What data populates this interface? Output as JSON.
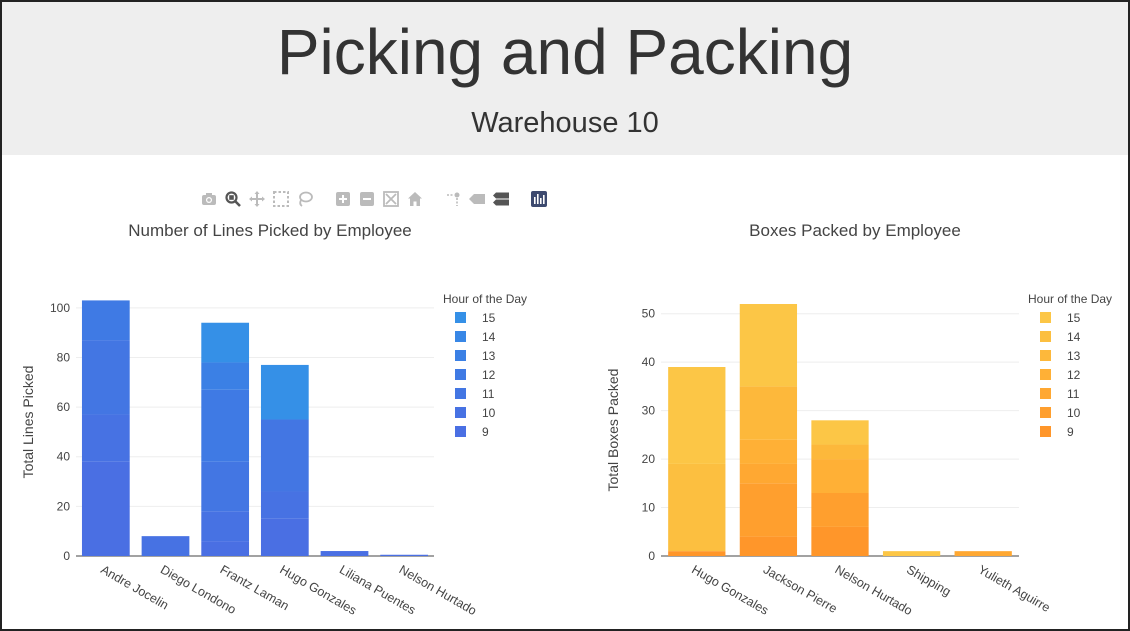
{
  "header": {
    "title": "Picking and Packing",
    "subtitle": "Warehouse 10"
  },
  "modebar": {
    "icons": [
      "camera-icon",
      "zoom-icon",
      "pan-icon",
      "box-select-icon",
      "lasso-select-icon",
      "zoom-in-icon",
      "zoom-out-icon",
      "autoscale-icon",
      "reset-axes-icon",
      "spike-lines-icon",
      "hover-closest-icon",
      "hover-compare-icon",
      "plotly-logo-icon"
    ]
  },
  "colors": {
    "blue": [
      "#4a6fe3",
      "#4772e3",
      "#4376e3",
      "#3f7ae4",
      "#3b80e5",
      "#3887e6",
      "#3590e7"
    ],
    "orange": [
      "#ff962a",
      "#ff9f2e",
      "#ffa832",
      "#ffb036",
      "#fdb83b",
      "#fcbf40",
      "#fcc646"
    ],
    "grid": "#eeeeee",
    "axis": "#444444"
  },
  "chart_data": [
    {
      "type": "bar",
      "stacked": true,
      "title": "Number of Lines Picked by Employee",
      "xlabel": "",
      "ylabel": "Total Lines Picked",
      "ylim": [
        0,
        108
      ],
      "yticks": [
        0,
        20,
        40,
        60,
        80,
        100
      ],
      "legend_title": "Hour of the Day",
      "legend_order": [
        "15",
        "14",
        "13",
        "12",
        "11",
        "10",
        "9"
      ],
      "categories": [
        "Andre Jocelin",
        "Diego Londono",
        "Frantz Laman",
        "Hugo Gonzales",
        "Liliana Puentes",
        "Nelson Hurtado"
      ],
      "series": [
        {
          "name": "9",
          "values": [
            38,
            0,
            6,
            15,
            2,
            0.5
          ]
        },
        {
          "name": "10",
          "values": [
            19,
            8,
            12,
            11,
            0,
            0
          ]
        },
        {
          "name": "11",
          "values": [
            30,
            0,
            20,
            29,
            0,
            0
          ]
        },
        {
          "name": "12",
          "values": [
            16,
            0,
            29,
            0,
            0,
            0
          ]
        },
        {
          "name": "13",
          "values": [
            0,
            0,
            11,
            0,
            0,
            0
          ]
        },
        {
          "name": "14",
          "values": [
            0,
            0,
            0,
            0,
            0,
            0
          ]
        },
        {
          "name": "15",
          "values": [
            0,
            0,
            16,
            22,
            0,
            0
          ]
        }
      ]
    },
    {
      "type": "bar",
      "stacked": true,
      "title": "Boxes Packed by Employee",
      "xlabel": "",
      "ylabel": "Total Boxes Packed",
      "ylim": [
        0,
        52
      ],
      "yticks": [
        0,
        10,
        20,
        30,
        40,
        50
      ],
      "legend_title": "Hour of the Day",
      "legend_order": [
        "15",
        "14",
        "13",
        "12",
        "11",
        "10",
        "9"
      ],
      "categories": [
        "Hugo Gonzales",
        "Jackson Pierre",
        "Nelson Hurtado",
        "Shipping",
        "Yulieth Aguirre"
      ],
      "series": [
        {
          "name": "9",
          "values": [
            1,
            4,
            6,
            0,
            0
          ]
        },
        {
          "name": "10",
          "values": [
            0,
            11,
            7,
            0,
            0
          ]
        },
        {
          "name": "11",
          "values": [
            0,
            4,
            0,
            0,
            1
          ]
        },
        {
          "name": "12",
          "values": [
            0,
            5,
            7,
            0,
            0
          ]
        },
        {
          "name": "13",
          "values": [
            0,
            11,
            3,
            0,
            0
          ]
        },
        {
          "name": "14",
          "values": [
            18,
            0,
            0,
            0,
            0
          ]
        },
        {
          "name": "15",
          "values": [
            20,
            17,
            5,
            1,
            0
          ]
        }
      ]
    }
  ]
}
